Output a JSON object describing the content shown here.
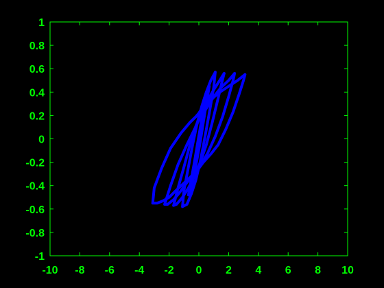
{
  "colors": {
    "background": "#000000",
    "axes": "#00ff00",
    "series": "#0000ff"
  },
  "chart_data": {
    "type": "line",
    "title": "",
    "xlabel": "",
    "ylabel": "",
    "xlim": [
      -10,
      10
    ],
    "ylim": [
      -1,
      1
    ],
    "grid": false,
    "box": true,
    "xticks": [
      -10,
      -8,
      -6,
      -4,
      -2,
      0,
      2,
      4,
      6,
      8,
      10
    ],
    "yticks": [
      -1,
      -0.8,
      -0.6,
      -0.4,
      -0.2,
      0,
      0.2,
      0.4,
      0.6,
      0.8,
      1
    ],
    "xtick_labels": [
      "-10",
      "-8",
      "-6",
      "-4",
      "-2",
      "0",
      "2",
      "4",
      "6",
      "8",
      "10"
    ],
    "ytick_labels": [
      "-1",
      "-0.8",
      "-0.6",
      "-0.4",
      "-0.2",
      "0",
      "0.2",
      "0.4",
      "0.6",
      "0.8",
      "1"
    ],
    "series": [
      {
        "loops": [
          {
            "x": [
              3.1,
              2.6,
              2.0,
              1.3,
              0.7,
              0.3,
              0.1,
              0.0,
              -0.2,
              -0.6,
              -1.2,
              -1.9,
              -2.5,
              -3.0,
              -3.1,
              -2.8,
              -2.4,
              -2.0,
              -1.6,
              -1.1,
              -0.6,
              -0.1,
              0.3,
              0.8,
              1.3,
              1.8,
              2.3,
              2.7,
              3.0,
              3.1
            ],
            "y": [
              0.55,
              0.5,
              0.45,
              0.39,
              0.32,
              0.27,
              0.24,
              0.22,
              0.19,
              0.14,
              0.05,
              -0.08,
              -0.25,
              -0.42,
              -0.55,
              -0.55,
              -0.53,
              -0.5,
              -0.45,
              -0.39,
              -0.33,
              -0.27,
              -0.2,
              -0.13,
              -0.05,
              0.08,
              0.23,
              0.38,
              0.5,
              0.55
            ]
          },
          {
            "x": [
              2.4,
              2.0,
              1.5,
              1.0,
              0.6,
              0.3,
              0.0,
              -0.3,
              -0.8,
              -1.4,
              -1.9,
              -2.3,
              -2.1,
              -1.7,
              -1.3,
              -0.9,
              -0.4,
              0.1,
              0.6,
              1.1,
              1.6,
              2.0,
              2.3,
              2.4
            ],
            "y": [
              0.56,
              0.5,
              0.44,
              0.36,
              0.28,
              0.22,
              0.16,
              0.08,
              -0.05,
              -0.22,
              -0.4,
              -0.56,
              -0.56,
              -0.52,
              -0.46,
              -0.39,
              -0.31,
              -0.23,
              -0.12,
              0.02,
              0.19,
              0.36,
              0.5,
              0.56
            ]
          },
          {
            "x": [
              1.7,
              1.4,
              1.0,
              0.6,
              0.2,
              -0.2,
              -0.6,
              -1.0,
              -1.4,
              -1.7,
              -1.5,
              -1.1,
              -0.7,
              -0.3,
              0.1,
              0.5,
              0.9,
              1.3,
              1.6,
              1.7
            ],
            "y": [
              0.56,
              0.5,
              0.42,
              0.33,
              0.23,
              0.11,
              -0.05,
              -0.24,
              -0.42,
              -0.57,
              -0.56,
              -0.5,
              -0.42,
              -0.32,
              -0.2,
              -0.05,
              0.14,
              0.35,
              0.51,
              0.56
            ]
          },
          {
            "x": [
              1.1,
              0.8,
              0.5,
              0.2,
              -0.1,
              -0.4,
              -0.7,
              -1.0,
              -1.1,
              -0.8,
              -0.5,
              -0.2,
              0.1,
              0.4,
              0.7,
              1.0,
              1.1
            ],
            "y": [
              0.57,
              0.5,
              0.4,
              0.28,
              0.14,
              -0.04,
              -0.24,
              -0.44,
              -0.58,
              -0.56,
              -0.47,
              -0.35,
              -0.19,
              0.01,
              0.22,
              0.44,
              0.57
            ]
          },
          {
            "x": [
              0.7,
              0.5,
              0.3,
              0.1,
              -0.1,
              -0.3,
              -0.5,
              -0.7,
              -0.5,
              -0.3,
              -0.1,
              0.1,
              0.3,
              0.5,
              0.7
            ],
            "y": [
              0.45,
              0.36,
              0.24,
              0.1,
              -0.05,
              -0.2,
              -0.34,
              -0.48,
              -0.42,
              -0.3,
              -0.16,
              -0.02,
              0.14,
              0.3,
              0.45
            ]
          }
        ]
      }
    ]
  }
}
